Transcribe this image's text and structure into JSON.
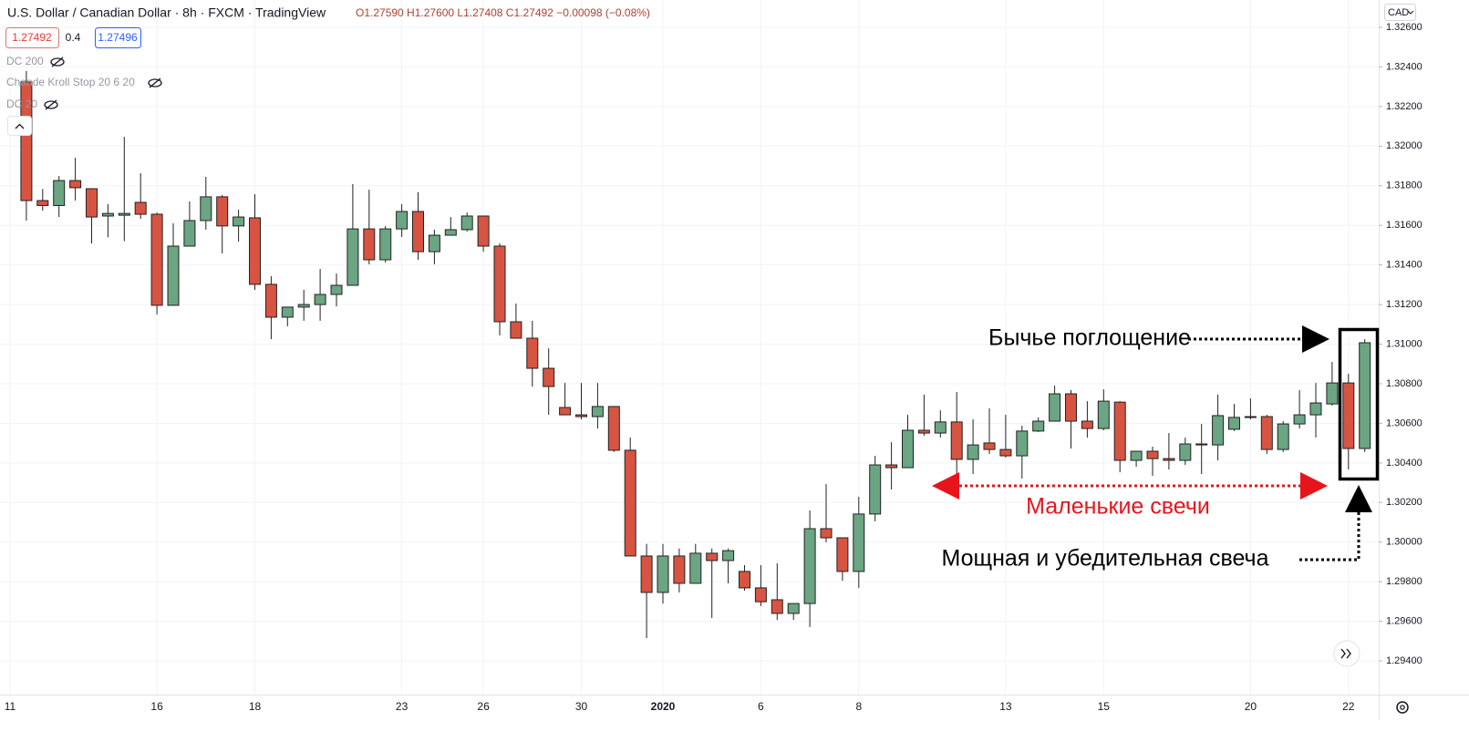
{
  "chart_data": {
    "type": "candlestick",
    "title": "U.S. Dollar / Canadian Dollar · 8h · FXCM · TradingView",
    "ohlc_readout": "O1.27590 H1.27600 L1.27408 C1.27492 −0.00098 (−0.08%)",
    "price_badges": [
      "1.27492",
      "0.4",
      "1.27496"
    ],
    "indicators": [
      "DC 200",
      "Chande Kroll Stop 20 6 20",
      "DC 20"
    ],
    "currency": "CAD",
    "annotations": [
      "Бычье поглощение",
      "Маленькие свечи",
      "Мощная и убедительная свеча"
    ],
    "up_color": "#6ba583",
    "down_color": "#d75442",
    "grid": true,
    "categories": [
      "11",
      null,
      null,
      null,
      null,
      null,
      null,
      null,
      null,
      "16",
      null,
      null,
      null,
      null,
      null,
      "18",
      null,
      null,
      null,
      null,
      null,
      null,
      null,
      null,
      "23",
      null,
      null,
      null,
      null,
      "26",
      null,
      null,
      null,
      null,
      null,
      "30",
      null,
      null,
      null,
      null,
      "2020",
      null,
      null,
      null,
      null,
      null,
      "6",
      null,
      null,
      null,
      null,
      null,
      "8",
      null,
      null,
      null,
      null,
      null,
      null,
      null,
      null,
      "13",
      null,
      null,
      null,
      null,
      null,
      "15",
      null,
      null,
      null,
      null,
      null,
      null,
      null,
      null,
      "20",
      null,
      null,
      null,
      null,
      null,
      "22",
      null
    ],
    "open": [
      null,
      1.32324,
      1.31725,
      1.317,
      1.31826,
      1.31785,
      1.31647,
      1.31651,
      1.31716,
      1.31656,
      1.31196,
      1.31495,
      1.31624,
      1.31744,
      1.31597,
      1.31638,
      1.31302,
      1.31136,
      1.31187,
      1.312,
      1.31251,
      1.31297,
      1.31582,
      1.31426,
      1.31582,
      1.3167,
      1.31467,
      1.3155,
      1.31578,
      1.31647,
      1.31495,
      1.31113,
      1.3103,
      1.30878,
      1.3068,
      1.30643,
      1.30634,
      1.30685,
      1.30464,
      1.2993,
      1.29746,
      1.2993,
      1.29792,
      1.29944,
      1.29907,
      1.29852,
      1.29769,
      1.29709,
      1.2964,
      1.2969,
      1.30068,
      1.30022,
      1.29852,
      1.30142,
      1.3039,
      1.30376,
      1.30565,
      1.30551,
      1.30607,
      1.30418,
      1.30501,
      1.30468,
      1.30436,
      1.30561,
      1.30611,
      1.30749,
      1.30611,
      1.30574,
      1.30707,
      1.30413,
      1.30459,
      1.30422,
      1.30413,
      1.30496,
      1.30491,
      1.3057,
      1.3063,
      1.30634,
      1.30468,
      1.30597,
      1.30643,
      1.30698,
      1.30804,
      1.30473
    ],
    "high": [
      null,
      1.32379,
      1.31784,
      1.31849,
      1.31941,
      1.31785,
      1.31707,
      1.32047,
      1.31863,
      1.31665,
      1.3161,
      1.31721,
      1.31845,
      1.31753,
      1.31679,
      1.31757,
      1.31343,
      1.31187,
      1.31274,
      1.3138,
      1.31357,
      1.31808,
      1.3178,
      1.31596,
      1.31707,
      1.31767,
      1.31578,
      1.31642,
      1.31665,
      1.31647,
      1.31509,
      1.31205,
      1.31118,
      1.30979,
      1.30804,
      1.30804,
      1.30804,
      1.30685,
      1.30528,
      1.29991,
      1.29991,
      1.29968,
      1.29991,
      1.29968,
      1.29968,
      1.29884,
      1.29884,
      1.29893,
      1.2969,
      1.3016,
      1.30293,
      1.30022,
      1.30229,
      1.30436,
      1.30505,
      1.30643,
      1.30745,
      1.30666,
      1.30758,
      1.3062,
      1.30676,
      1.30643,
      1.30588,
      1.3063,
      1.30791,
      1.30768,
      1.30712,
      1.30772,
      1.30712,
      1.30459,
      1.30482,
      1.30551,
      1.30528,
      1.30597,
      1.30745,
      1.30698,
      1.30726,
      1.30643,
      1.30611,
      1.30768,
      1.30804,
      1.3091,
      1.3085,
      1.31025
    ],
    "low": [
      null,
      1.31624,
      1.31674,
      1.31642,
      1.31725,
      1.31508,
      1.3154,
      1.3152,
      1.31633,
      1.3115,
      1.31196,
      1.31495,
      1.31578,
      1.31458,
      1.31518,
      1.31274,
      1.31025,
      1.3109,
      1.31118,
      1.31118,
      1.31191,
      1.31297,
      1.31403,
      1.31412,
      1.31541,
      1.31426,
      1.31403,
      1.3155,
      1.31569,
      1.31467,
      1.31044,
      1.3103,
      1.30786,
      1.30643,
      1.30643,
      1.3062,
      1.30574,
      1.30455,
      1.2993,
      1.29515,
      1.2969,
      1.29746,
      1.29792,
      1.29617,
      1.29792,
      1.29755,
      1.29677,
      1.29607,
      1.29607,
      1.29571,
      1.29999,
      1.29805,
      1.29769,
      1.30105,
      1.30266,
      1.30376,
      1.30537,
      1.30528,
      1.30298,
      1.30344,
      1.30445,
      1.30427,
      1.30321,
      1.30556,
      1.30611,
      1.30473,
      1.30528,
      1.30565,
      1.30353,
      1.30381,
      1.30335,
      1.30367,
      1.3039,
      1.30344,
      1.30413,
      1.30561,
      1.3062,
      1.30445,
      1.30455,
      1.30574,
      1.30528,
      1.30689,
      1.30367,
      1.30455
    ],
    "close": [
      null,
      1.31725,
      1.317,
      1.31826,
      1.3179,
      1.31642,
      1.3166,
      1.3166,
      1.31656,
      1.31196,
      1.31495,
      1.31624,
      1.31744,
      1.31597,
      1.31642,
      1.31302,
      1.31136,
      1.31187,
      1.312,
      1.31251,
      1.31297,
      1.31582,
      1.31426,
      1.31582,
      1.3167,
      1.31467,
      1.3155,
      1.31578,
      1.31647,
      1.31495,
      1.31113,
      1.3103,
      1.30878,
      1.30786,
      1.30643,
      1.30634,
      1.30685,
      1.30464,
      1.2993,
      1.29746,
      1.2993,
      1.29792,
      1.29944,
      1.29907,
      1.29957,
      1.29769,
      1.29699,
      1.2964,
      1.2969,
      1.30068,
      1.30022,
      1.29852,
      1.30142,
      1.3039,
      1.30376,
      1.30565,
      1.30551,
      1.30607,
      1.30418,
      1.30491,
      1.30468,
      1.30436,
      1.30561,
      1.30611,
      1.30749,
      1.30611,
      1.30574,
      1.30712,
      1.30413,
      1.30459,
      1.30422,
      1.30413,
      1.30496,
      1.30491,
      1.30639,
      1.3063,
      1.30634,
      1.30468,
      1.30597,
      1.30643,
      1.30703,
      1.30804,
      1.30473,
      1.31007
    ],
    "ylim": [
      1.2923,
      1.32738
    ],
    "yticks": [
      {
        "value": 1.294,
        "label": "1.29400"
      },
      {
        "value": 1.296,
        "label": "1.29600"
      },
      {
        "value": 1.298,
        "label": "1.29800"
      },
      {
        "value": 1.3,
        "label": "1.30000"
      },
      {
        "value": 1.302,
        "label": "1.30200"
      },
      {
        "value": 1.304,
        "label": "1.30400"
      },
      {
        "value": 1.306,
        "label": "1.30600"
      },
      {
        "value": 1.308,
        "label": "1.30800"
      },
      {
        "value": 1.31,
        "label": "1.31000"
      },
      {
        "value": 1.312,
        "label": "1.31200"
      },
      {
        "value": 1.314,
        "label": "1.31400"
      },
      {
        "value": 1.316,
        "label": "1.31600"
      },
      {
        "value": 1.318,
        "label": "1.31800"
      },
      {
        "value": 1.32,
        "label": "1.32000"
      },
      {
        "value": 1.322,
        "label": "1.32200"
      },
      {
        "value": 1.324,
        "label": "1.32400"
      },
      {
        "value": 1.326,
        "label": "1.32600"
      }
    ]
  }
}
